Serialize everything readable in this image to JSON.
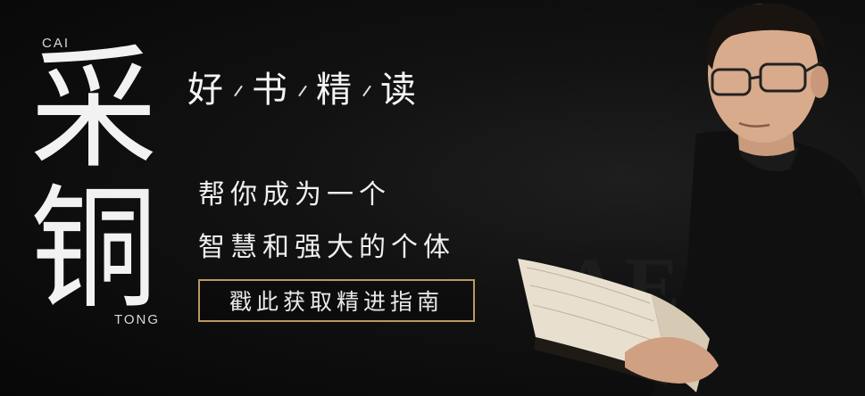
{
  "brand": {
    "latin_top": "CAI",
    "char_1": "采",
    "char_2": "铜",
    "latin_bottom": "TONG"
  },
  "headline": {
    "words": [
      "好",
      "书",
      "精",
      "读"
    ]
  },
  "tagline": {
    "line_1": "帮你成为一个",
    "line_2": "智慧和强大的个体"
  },
  "cta": {
    "label": "戳此获取精进指南",
    "border_color": "#b89a5e"
  },
  "background_text": "AE"
}
